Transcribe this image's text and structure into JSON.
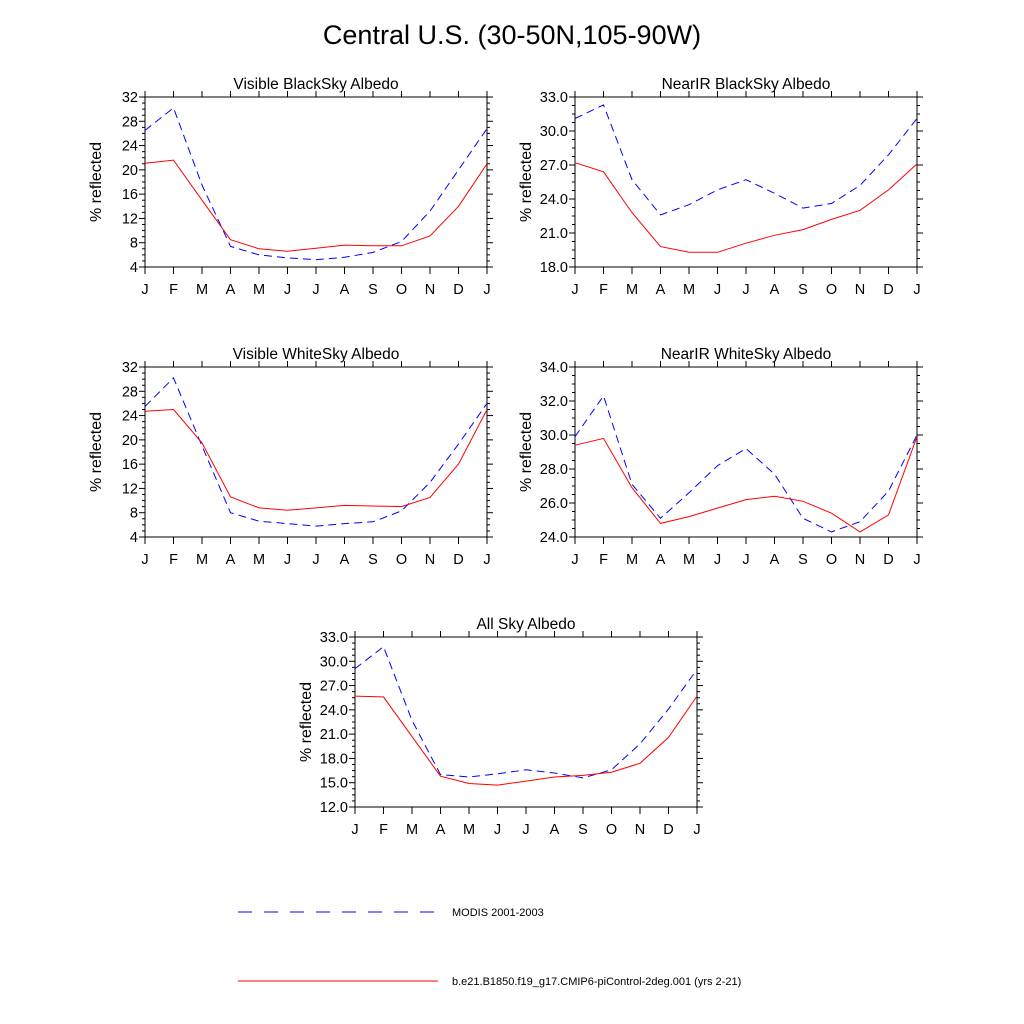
{
  "figure": {
    "title": "Central U.S. (30-50N,105-90W)"
  },
  "legend": {
    "items": [
      {
        "label": "MODIS 2001-2003",
        "color": "#0000ff",
        "style": "dashed"
      },
      {
        "label": "b.e21.B1850.f19_g17.CMIP6-piControl-2deg.001 (yrs 2-21)",
        "color": "#ff0000",
        "style": "solid"
      }
    ]
  },
  "chart_data": [
    {
      "type": "line",
      "title": "Visible BlackSky Albedo",
      "ylabel": "% reflected",
      "xlabel": "",
      "categories": [
        "J",
        "F",
        "M",
        "A",
        "M",
        "J",
        "J",
        "A",
        "S",
        "O",
        "N",
        "D",
        "J"
      ],
      "ylim": [
        4,
        32
      ],
      "yticks": [
        "4",
        "8",
        "12",
        "16",
        "20",
        "24",
        "28",
        "32"
      ],
      "series": [
        {
          "name": "MODIS 2001-2003",
          "color": "#0000ff",
          "style": "dashed",
          "values": [
            26.5,
            30.2,
            17.5,
            7.4,
            6.0,
            5.5,
            5.2,
            5.6,
            6.4,
            8.2,
            13.2,
            20.0,
            26.8
          ]
        },
        {
          "name": "b.e21.B1850.f19_g17.CMIP6-piControl-2deg.001 (yrs 2-21)",
          "color": "#ff0000",
          "style": "solid",
          "values": [
            21.1,
            21.6,
            15.0,
            8.5,
            7.0,
            6.6,
            7.1,
            7.6,
            7.5,
            7.5,
            9.1,
            14.0,
            21.0
          ]
        }
      ]
    },
    {
      "type": "line",
      "title": "NearIR BlackSky Albedo",
      "ylabel": "% reflected",
      "xlabel": "",
      "categories": [
        "J",
        "F",
        "M",
        "A",
        "M",
        "J",
        "J",
        "A",
        "S",
        "O",
        "N",
        "D",
        "J"
      ],
      "ylim": [
        18,
        33
      ],
      "yticks": [
        "18.0",
        "21.0",
        "24.0",
        "27.0",
        "30.0",
        "33.0"
      ],
      "series": [
        {
          "name": "MODIS 2001-2003",
          "color": "#0000ff",
          "style": "dashed",
          "values": [
            31.1,
            32.3,
            25.7,
            22.6,
            23.5,
            24.8,
            25.7,
            24.5,
            23.2,
            23.6,
            25.2,
            27.9,
            31.1
          ]
        },
        {
          "name": "b.e21.B1850.f19_g17.CMIP6-piControl-2deg.001 (yrs 2-21)",
          "color": "#ff0000",
          "style": "solid",
          "values": [
            27.2,
            26.4,
            22.8,
            19.8,
            19.3,
            19.3,
            20.1,
            20.8,
            21.3,
            22.2,
            23.0,
            24.8,
            27.1
          ]
        }
      ]
    },
    {
      "type": "line",
      "title": "Visible WhiteSky Albedo",
      "ylabel": "% reflected",
      "xlabel": "",
      "categories": [
        "J",
        "F",
        "M",
        "A",
        "M",
        "J",
        "J",
        "A",
        "S",
        "O",
        "N",
        "D",
        "J"
      ],
      "ylim": [
        4,
        32
      ],
      "yticks": [
        "4",
        "8",
        "12",
        "16",
        "20",
        "24",
        "28",
        "32"
      ],
      "series": [
        {
          "name": "MODIS 2001-2003",
          "color": "#0000ff",
          "style": "dashed",
          "values": [
            25.5,
            30.2,
            19.0,
            8.0,
            6.6,
            6.2,
            5.8,
            6.2,
            6.5,
            8.3,
            13.0,
            19.3,
            26.0
          ]
        },
        {
          "name": "b.e21.B1850.f19_g17.CMIP6-piControl-2deg.001 (yrs 2-21)",
          "color": "#ff0000",
          "style": "solid",
          "values": [
            24.7,
            25.0,
            19.5,
            10.6,
            8.8,
            8.4,
            8.8,
            9.2,
            9.1,
            9.0,
            10.5,
            16.0,
            25.0
          ]
        }
      ]
    },
    {
      "type": "line",
      "title": "NearIR WhiteSky Albedo",
      "ylabel": "% reflected",
      "xlabel": "",
      "categories": [
        "J",
        "F",
        "M",
        "A",
        "M",
        "J",
        "J",
        "A",
        "S",
        "O",
        "N",
        "D",
        "J"
      ],
      "ylim": [
        24,
        34
      ],
      "yticks": [
        "24.0",
        "26.0",
        "28.0",
        "30.0",
        "32.0",
        "34.0"
      ],
      "series": [
        {
          "name": "MODIS 2001-2003",
          "color": "#0000ff",
          "style": "dashed",
          "values": [
            29.9,
            32.3,
            27.1,
            25.1,
            26.6,
            28.2,
            29.2,
            27.7,
            25.1,
            24.3,
            24.9,
            26.7,
            30.0
          ]
        },
        {
          "name": "b.e21.B1850.f19_g17.CMIP6-piControl-2deg.001 (yrs 2-21)",
          "color": "#ff0000",
          "style": "solid",
          "values": [
            29.4,
            29.8,
            26.9,
            24.8,
            25.2,
            25.7,
            26.2,
            26.4,
            26.1,
            25.4,
            24.3,
            25.3,
            29.9
          ]
        }
      ]
    },
    {
      "type": "line",
      "title": "All Sky Albedo",
      "ylabel": "% reflected",
      "xlabel": "",
      "categories": [
        "J",
        "F",
        "M",
        "A",
        "M",
        "J",
        "J",
        "A",
        "S",
        "O",
        "N",
        "D",
        "J"
      ],
      "ylim": [
        12,
        33
      ],
      "yticks": [
        "12.0",
        "15.0",
        "18.0",
        "21.0",
        "24.0",
        "27.0",
        "30.0",
        "33.0"
      ],
      "series": [
        {
          "name": "MODIS 2001-2003",
          "color": "#0000ff",
          "style": "dashed",
          "values": [
            29.1,
            31.8,
            22.7,
            16.0,
            15.7,
            16.1,
            16.6,
            16.2,
            15.6,
            16.6,
            19.8,
            24.1,
            29.0
          ]
        },
        {
          "name": "b.e21.B1850.f19_g17.CMIP6-piControl-2deg.001 (yrs 2-21)",
          "color": "#ff0000",
          "style": "solid",
          "values": [
            25.7,
            25.6,
            20.7,
            15.8,
            14.9,
            14.7,
            15.2,
            15.7,
            15.9,
            16.3,
            17.4,
            20.6,
            25.7
          ]
        }
      ]
    }
  ]
}
